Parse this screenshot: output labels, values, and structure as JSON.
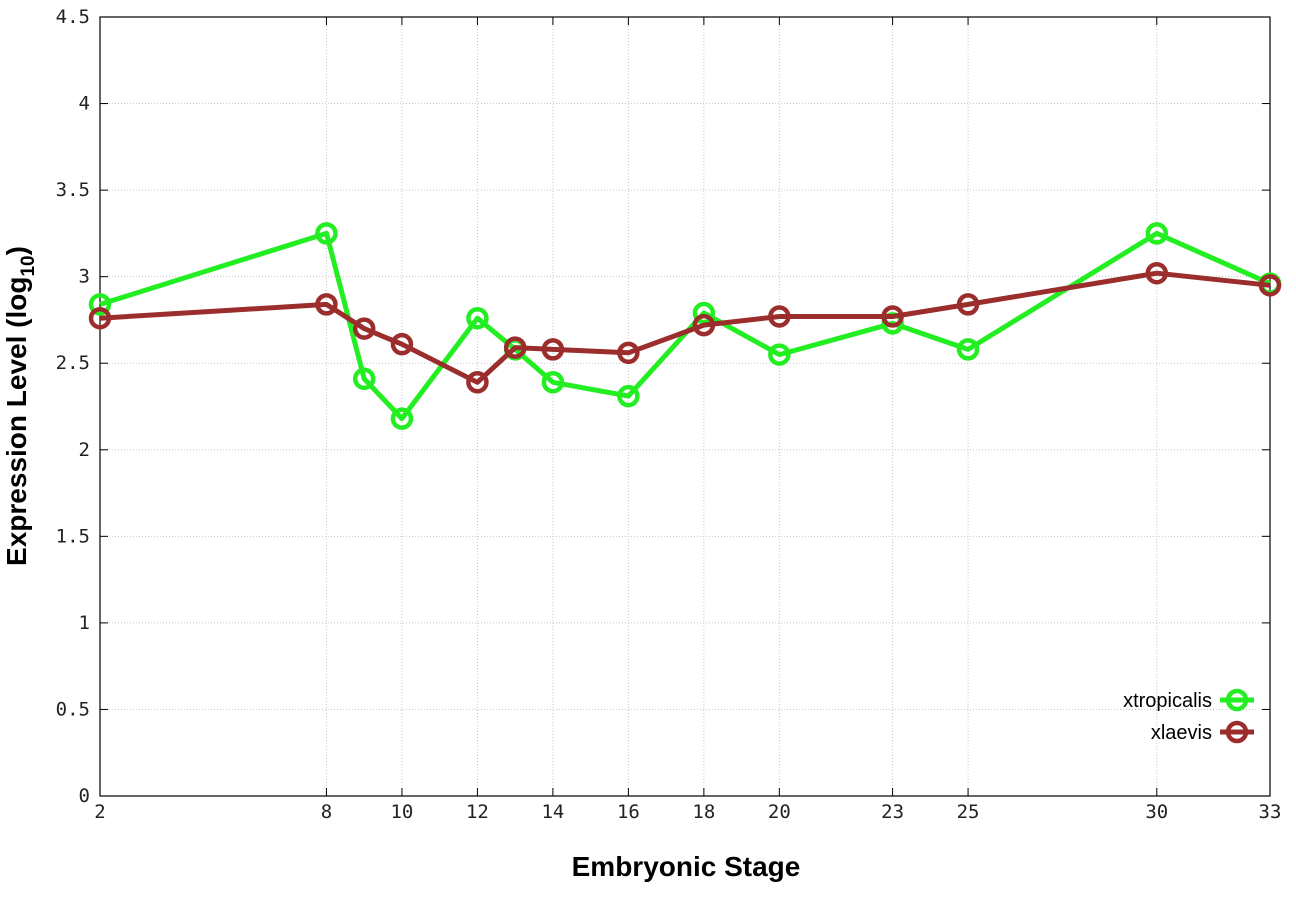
{
  "chart_data": {
    "type": "line",
    "xlabel": "Embryonic Stage",
    "ylabel": "Expression Level (log",
    "ylabel_subscript": "10",
    "ylabel_close": ")",
    "xlim": [
      2,
      33
    ],
    "ylim": [
      0,
      4.5
    ],
    "x_ticks": [
      2,
      8,
      10,
      12,
      14,
      16,
      18,
      20,
      23,
      25,
      30,
      33
    ],
    "y_ticks": [
      0,
      0.5,
      1,
      1.5,
      2,
      2.5,
      3,
      3.5,
      4,
      4.5
    ],
    "y_tick_labels": [
      "0",
      "0.5",
      "1",
      "1.5",
      "2",
      "2.5",
      "3",
      "3.5",
      "4",
      "4.5"
    ],
    "grid": true,
    "legend_position": "bottom-right",
    "series": [
      {
        "name": "xtropicalis",
        "color": "#22ee22",
        "x": [
          2,
          8,
          9,
          10,
          12,
          13,
          14,
          16,
          18,
          20,
          23,
          25,
          30,
          33
        ],
        "values": [
          2.84,
          3.25,
          2.41,
          2.18,
          2.76,
          2.58,
          2.39,
          2.31,
          2.79,
          2.55,
          2.73,
          2.58,
          3.25,
          2.96
        ]
      },
      {
        "name": "xlaevis",
        "color": "#9b2d2d",
        "x": [
          2,
          8,
          9,
          10,
          12,
          13,
          14,
          16,
          18,
          20,
          23,
          25,
          30,
          33
        ],
        "values": [
          2.76,
          2.84,
          2.7,
          2.61,
          2.39,
          2.59,
          2.58,
          2.56,
          2.72,
          2.77,
          2.77,
          2.84,
          3.02,
          2.95
        ]
      }
    ]
  }
}
